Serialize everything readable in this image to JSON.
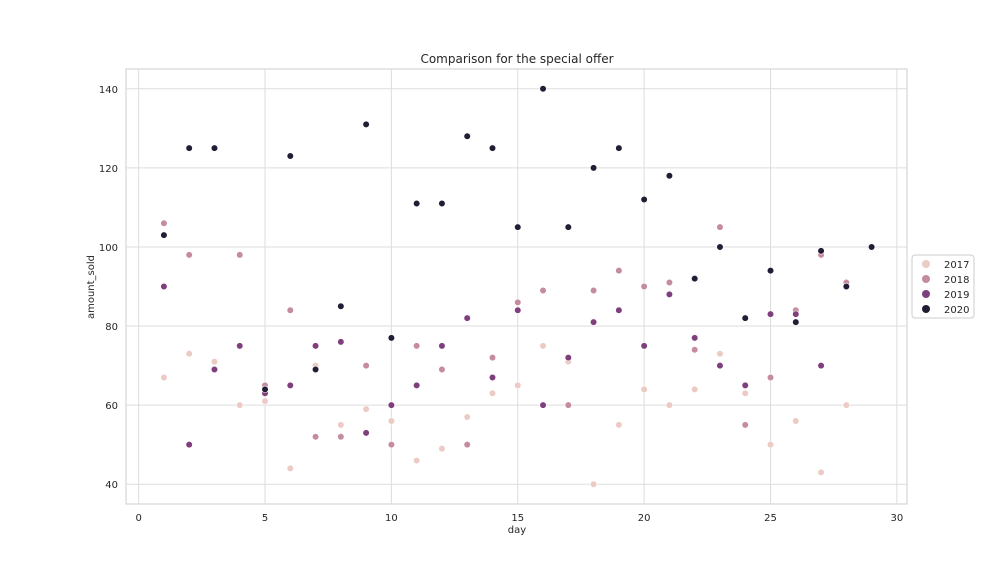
{
  "chart_data": {
    "type": "scatter",
    "title": "Comparison for the special offer",
    "xlabel": "day",
    "ylabel": "amount_sold",
    "xlim": [
      -0.5,
      30.4
    ],
    "ylim": [
      35,
      145
    ],
    "xticks": [
      0,
      5,
      10,
      15,
      20,
      25,
      30
    ],
    "yticks": [
      40,
      60,
      80,
      100,
      120,
      140
    ],
    "grid": true,
    "legend_position": "right",
    "series": [
      {
        "name": "2017",
        "color": "#ebcbc4",
        "points": [
          [
            1,
            67
          ],
          [
            2,
            73
          ],
          [
            3,
            71
          ],
          [
            4,
            60
          ],
          [
            5,
            61
          ],
          [
            5,
            65
          ],
          [
            6,
            44
          ],
          [
            7,
            70
          ],
          [
            8,
            55
          ],
          [
            9,
            59
          ],
          [
            10,
            56
          ],
          [
            11,
            46
          ],
          [
            12,
            49
          ],
          [
            13,
            57
          ],
          [
            14,
            63
          ],
          [
            15,
            65
          ],
          [
            16,
            75
          ],
          [
            17,
            71
          ],
          [
            18,
            40
          ],
          [
            19,
            55
          ],
          [
            20,
            64
          ],
          [
            21,
            60
          ],
          [
            22,
            64
          ],
          [
            23,
            73
          ],
          [
            24,
            63
          ],
          [
            25,
            50
          ],
          [
            26,
            56
          ],
          [
            27,
            43
          ],
          [
            28,
            60
          ]
        ]
      },
      {
        "name": "2018",
        "color": "#c58b9f",
        "points": [
          [
            1,
            106
          ],
          [
            2,
            98
          ],
          [
            4,
            98
          ],
          [
            5,
            65
          ],
          [
            6,
            84
          ],
          [
            7,
            52
          ],
          [
            8,
            52
          ],
          [
            9,
            70
          ],
          [
            10,
            50
          ],
          [
            11,
            75
          ],
          [
            12,
            69
          ],
          [
            13,
            50
          ],
          [
            14,
            72
          ],
          [
            15,
            86
          ],
          [
            16,
            89
          ],
          [
            17,
            60
          ],
          [
            18,
            89
          ],
          [
            19,
            94
          ],
          [
            20,
            90
          ],
          [
            21,
            91
          ],
          [
            22,
            74
          ],
          [
            23,
            105
          ],
          [
            24,
            55
          ],
          [
            25,
            67
          ],
          [
            26,
            84
          ],
          [
            27,
            98
          ],
          [
            28,
            91
          ]
        ]
      },
      {
        "name": "2019",
        "color": "#7f3f7d",
        "points": [
          [
            1,
            90
          ],
          [
            2,
            50
          ],
          [
            3,
            69
          ],
          [
            4,
            75
          ],
          [
            5,
            63
          ],
          [
            6,
            65
          ],
          [
            7,
            75
          ],
          [
            8,
            76
          ],
          [
            9,
            53
          ],
          [
            10,
            60
          ],
          [
            11,
            65
          ],
          [
            12,
            75
          ],
          [
            13,
            82
          ],
          [
            14,
            67
          ],
          [
            15,
            84
          ],
          [
            16,
            60
          ],
          [
            17,
            72
          ],
          [
            18,
            81
          ],
          [
            19,
            84
          ],
          [
            20,
            75
          ],
          [
            21,
            88
          ],
          [
            22,
            77
          ],
          [
            23,
            70
          ],
          [
            24,
            65
          ],
          [
            25,
            83
          ],
          [
            26,
            83
          ],
          [
            27,
            70
          ]
        ]
      },
      {
        "name": "2020",
        "color": "#231c35",
        "points": [
          [
            1,
            103
          ],
          [
            2,
            125
          ],
          [
            3,
            125
          ],
          [
            5,
            64
          ],
          [
            6,
            123
          ],
          [
            7,
            69
          ],
          [
            8,
            85
          ],
          [
            9,
            131
          ],
          [
            10,
            77
          ],
          [
            11,
            111
          ],
          [
            12,
            111
          ],
          [
            13,
            128
          ],
          [
            14,
            125
          ],
          [
            15,
            105
          ],
          [
            16,
            140
          ],
          [
            17,
            105
          ],
          [
            18,
            120
          ],
          [
            19,
            125
          ],
          [
            20,
            112
          ],
          [
            21,
            118
          ],
          [
            22,
            92
          ],
          [
            23,
            100
          ],
          [
            24,
            82
          ],
          [
            25,
            94
          ],
          [
            26,
            81
          ],
          [
            27,
            99
          ],
          [
            28,
            90
          ],
          [
            29,
            100
          ]
        ]
      }
    ]
  }
}
